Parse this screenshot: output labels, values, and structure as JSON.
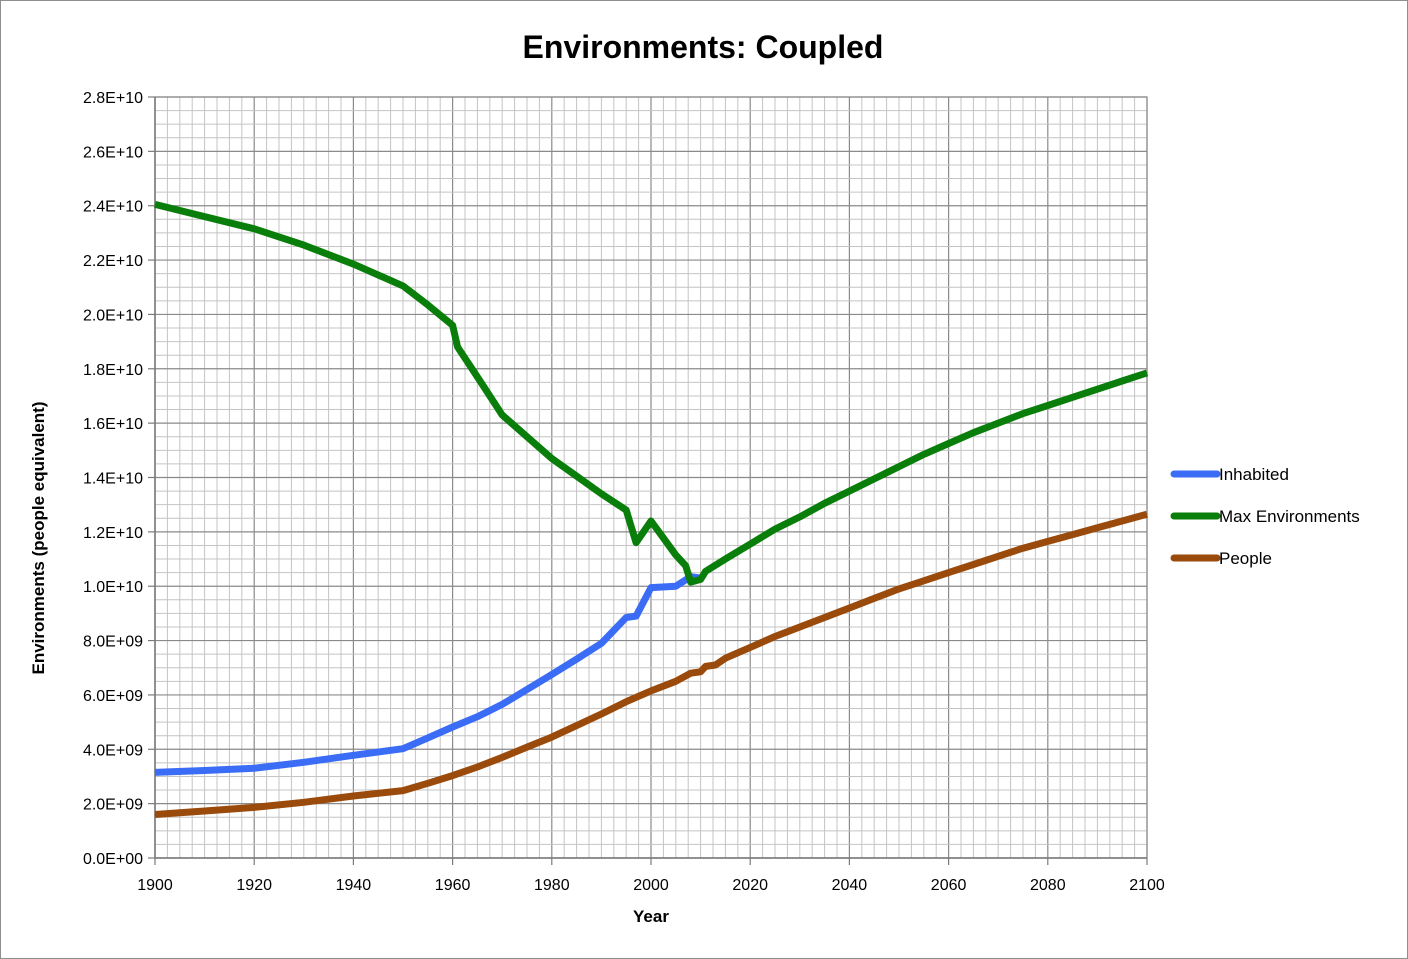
{
  "chart_data": {
    "type": "line",
    "title": "Environments: Coupled",
    "xlabel": "Year",
    "ylabel": "Environments (people equivalent)",
    "xlim": [
      1900,
      2100
    ],
    "ylim": [
      0,
      28000000000
    ],
    "grid": true,
    "legend_position": "right",
    "x_ticks": [
      {
        "value": 1900,
        "label": "1900"
      },
      {
        "value": 1920,
        "label": "1920"
      },
      {
        "value": 1940,
        "label": "1940"
      },
      {
        "value": 1960,
        "label": "1960"
      },
      {
        "value": 1980,
        "label": "1980"
      },
      {
        "value": 2000,
        "label": "2000"
      },
      {
        "value": 2020,
        "label": "2020"
      },
      {
        "value": 2040,
        "label": "2040"
      },
      {
        "value": 2060,
        "label": "2060"
      },
      {
        "value": 2080,
        "label": "2080"
      },
      {
        "value": 2100,
        "label": "2100"
      }
    ],
    "y_ticks": [
      {
        "value": 0,
        "label": "0.0E+00"
      },
      {
        "value": 2000000000,
        "label": "2.0E+09"
      },
      {
        "value": 4000000000,
        "label": "4.0E+09"
      },
      {
        "value": 6000000000,
        "label": "6.0E+09"
      },
      {
        "value": 8000000000,
        "label": "8.0E+09"
      },
      {
        "value": 10000000000,
        "label": "1.0E+10"
      },
      {
        "value": 12000000000,
        "label": "1.2E+10"
      },
      {
        "value": 14000000000,
        "label": "1.4E+10"
      },
      {
        "value": 16000000000,
        "label": "1.6E+10"
      },
      {
        "value": 18000000000,
        "label": "1.8E+10"
      },
      {
        "value": 20000000000,
        "label": "2.0E+10"
      },
      {
        "value": 22000000000,
        "label": "2.2E+10"
      },
      {
        "value": 24000000000,
        "label": "2.4E+10"
      },
      {
        "value": 26000000000,
        "label": "2.6E+10"
      },
      {
        "value": 28000000000,
        "label": "2.8E+10"
      }
    ],
    "series": [
      {
        "name": "Inhabited",
        "color": "#3b6cf5",
        "points": [
          [
            1900,
            3150000000.0
          ],
          [
            1910,
            3220000000.0
          ],
          [
            1920,
            3300000000.0
          ],
          [
            1930,
            3520000000.0
          ],
          [
            1940,
            3780000000.0
          ],
          [
            1950,
            4020000000.0
          ],
          [
            1955,
            4420000000.0
          ],
          [
            1960,
            4820000000.0
          ],
          [
            1965,
            5200000000.0
          ],
          [
            1970,
            5650000000.0
          ],
          [
            1975,
            6200000000.0
          ],
          [
            1980,
            6750000000.0
          ],
          [
            1985,
            7320000000.0
          ],
          [
            1990,
            7900000000.0
          ],
          [
            1995,
            8850000000.0
          ],
          [
            1997,
            8900000000.0
          ],
          [
            2000,
            9950000000.0
          ],
          [
            2005,
            10000000000.0
          ],
          [
            2008,
            10350000000.0
          ],
          [
            2010,
            10300000000.0
          ]
        ]
      },
      {
        "name": "Max Environments",
        "color": "#0a7e0a",
        "points": [
          [
            1900,
            24050000000.0
          ],
          [
            1910,
            23600000000.0
          ],
          [
            1920,
            23150000000.0
          ],
          [
            1930,
            22550000000.0
          ],
          [
            1940,
            21850000000.0
          ],
          [
            1950,
            21050000000.0
          ],
          [
            1955,
            20350000000.0
          ],
          [
            1960,
            19600000000.0
          ],
          [
            1961,
            18800000000.0
          ],
          [
            1965,
            17700000000.0
          ],
          [
            1970,
            16300000000.0
          ],
          [
            1975,
            15500000000.0
          ],
          [
            1980,
            14700000000.0
          ],
          [
            1985,
            14050000000.0
          ],
          [
            1990,
            13400000000.0
          ],
          [
            1995,
            12800000000.0
          ],
          [
            1997,
            11600000000.0
          ],
          [
            2000,
            12400000000.0
          ],
          [
            2002,
            11900000000.0
          ],
          [
            2005,
            11150000000.0
          ],
          [
            2007,
            10750000000.0
          ],
          [
            2008,
            10150000000.0
          ],
          [
            2010,
            10250000000.0
          ],
          [
            2011,
            10550000000.0
          ],
          [
            2015,
            11000000000.0
          ],
          [
            2020,
            11550000000.0
          ],
          [
            2025,
            12100000000.0
          ],
          [
            2030,
            12550000000.0
          ],
          [
            2035,
            13050000000.0
          ],
          [
            2040,
            13500000000.0
          ],
          [
            2045,
            13950000000.0
          ],
          [
            2050,
            14400000000.0
          ],
          [
            2055,
            14850000000.0
          ],
          [
            2060,
            15250000000.0
          ],
          [
            2065,
            15650000000.0
          ],
          [
            2070,
            16000000000.0
          ],
          [
            2075,
            16350000000.0
          ],
          [
            2080,
            16650000000.0
          ],
          [
            2085,
            16950000000.0
          ],
          [
            2090,
            17250000000.0
          ],
          [
            2095,
            17550000000.0
          ],
          [
            2100,
            17850000000.0
          ]
        ]
      },
      {
        "name": "People",
        "color": "#9a4a0a",
        "points": [
          [
            1900,
            1600000000.0
          ],
          [
            1910,
            1730000000.0
          ],
          [
            1920,
            1860000000.0
          ],
          [
            1930,
            2050000000.0
          ],
          [
            1940,
            2280000000.0
          ],
          [
            1950,
            2480000000.0
          ],
          [
            1955,
            2750000000.0
          ],
          [
            1960,
            3030000000.0
          ],
          [
            1965,
            3350000000.0
          ],
          [
            1970,
            3700000000.0
          ],
          [
            1975,
            4080000000.0
          ],
          [
            1980,
            4450000000.0
          ],
          [
            1985,
            4870000000.0
          ],
          [
            1990,
            5300000000.0
          ],
          [
            1995,
            5750000000.0
          ],
          [
            2000,
            6150000000.0
          ],
          [
            2005,
            6500000000.0
          ],
          [
            2008,
            6800000000.0
          ],
          [
            2010,
            6850000000.0
          ],
          [
            2011,
            7050000000.0
          ],
          [
            2013,
            7100000000.0
          ],
          [
            2015,
            7350000000.0
          ],
          [
            2020,
            7750000000.0
          ],
          [
            2025,
            8150000000.0
          ],
          [
            2030,
            8500000000.0
          ],
          [
            2035,
            8850000000.0
          ],
          [
            2040,
            9200000000.0
          ],
          [
            2045,
            9550000000.0
          ],
          [
            2050,
            9900000000.0
          ],
          [
            2055,
            10200000000.0
          ],
          [
            2060,
            10500000000.0
          ],
          [
            2065,
            10800000000.0
          ],
          [
            2070,
            11100000000.0
          ],
          [
            2075,
            11400000000.0
          ],
          [
            2080,
            11650000000.0
          ],
          [
            2085,
            11900000000.0
          ],
          [
            2090,
            12150000000.0
          ],
          [
            2095,
            12400000000.0
          ],
          [
            2100,
            12650000000.0
          ]
        ]
      }
    ]
  }
}
